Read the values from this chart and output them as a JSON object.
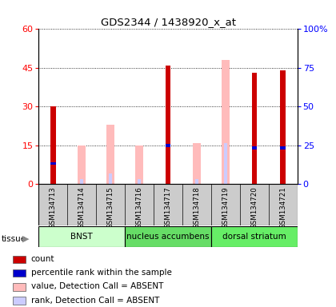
{
  "title": "GDS2344 / 1438920_x_at",
  "samples": [
    "GSM134713",
    "GSM134714",
    "GSM134715",
    "GSM134716",
    "GSM134717",
    "GSM134718",
    "GSM134719",
    "GSM134720",
    "GSM134721"
  ],
  "count_values": [
    30,
    0,
    0,
    0,
    46,
    0,
    0,
    43,
    44
  ],
  "percentile_rank": [
    8,
    0,
    0,
    0,
    15,
    0,
    0,
    14,
    14
  ],
  "absent_value": [
    0,
    15,
    23,
    15,
    0,
    16,
    48,
    0,
    0
  ],
  "absent_rank": [
    0,
    2,
    4,
    2,
    0,
    2,
    16,
    0,
    0
  ],
  "tissues": [
    {
      "label": "BNST",
      "start": 0,
      "end": 3
    },
    {
      "label": "nucleus accumbens",
      "start": 3,
      "end": 6
    },
    {
      "label": "dorsal striatum",
      "start": 6,
      "end": 9
    }
  ],
  "tissue_colors": [
    "#ccffcc",
    "#66dd66",
    "#66ee66"
  ],
  "ylim_left": [
    0,
    60
  ],
  "ylim_right": [
    0,
    100
  ],
  "yticks_left": [
    0,
    15,
    30,
    45,
    60
  ],
  "yticks_right": [
    0,
    25,
    50,
    75,
    100
  ],
  "color_count": "#cc0000",
  "color_rank": "#0000cc",
  "color_absent_value": "#ffbbbb",
  "color_absent_rank": "#ccccff",
  "background_plot": "#ffffff",
  "background_sample": "#cccccc"
}
